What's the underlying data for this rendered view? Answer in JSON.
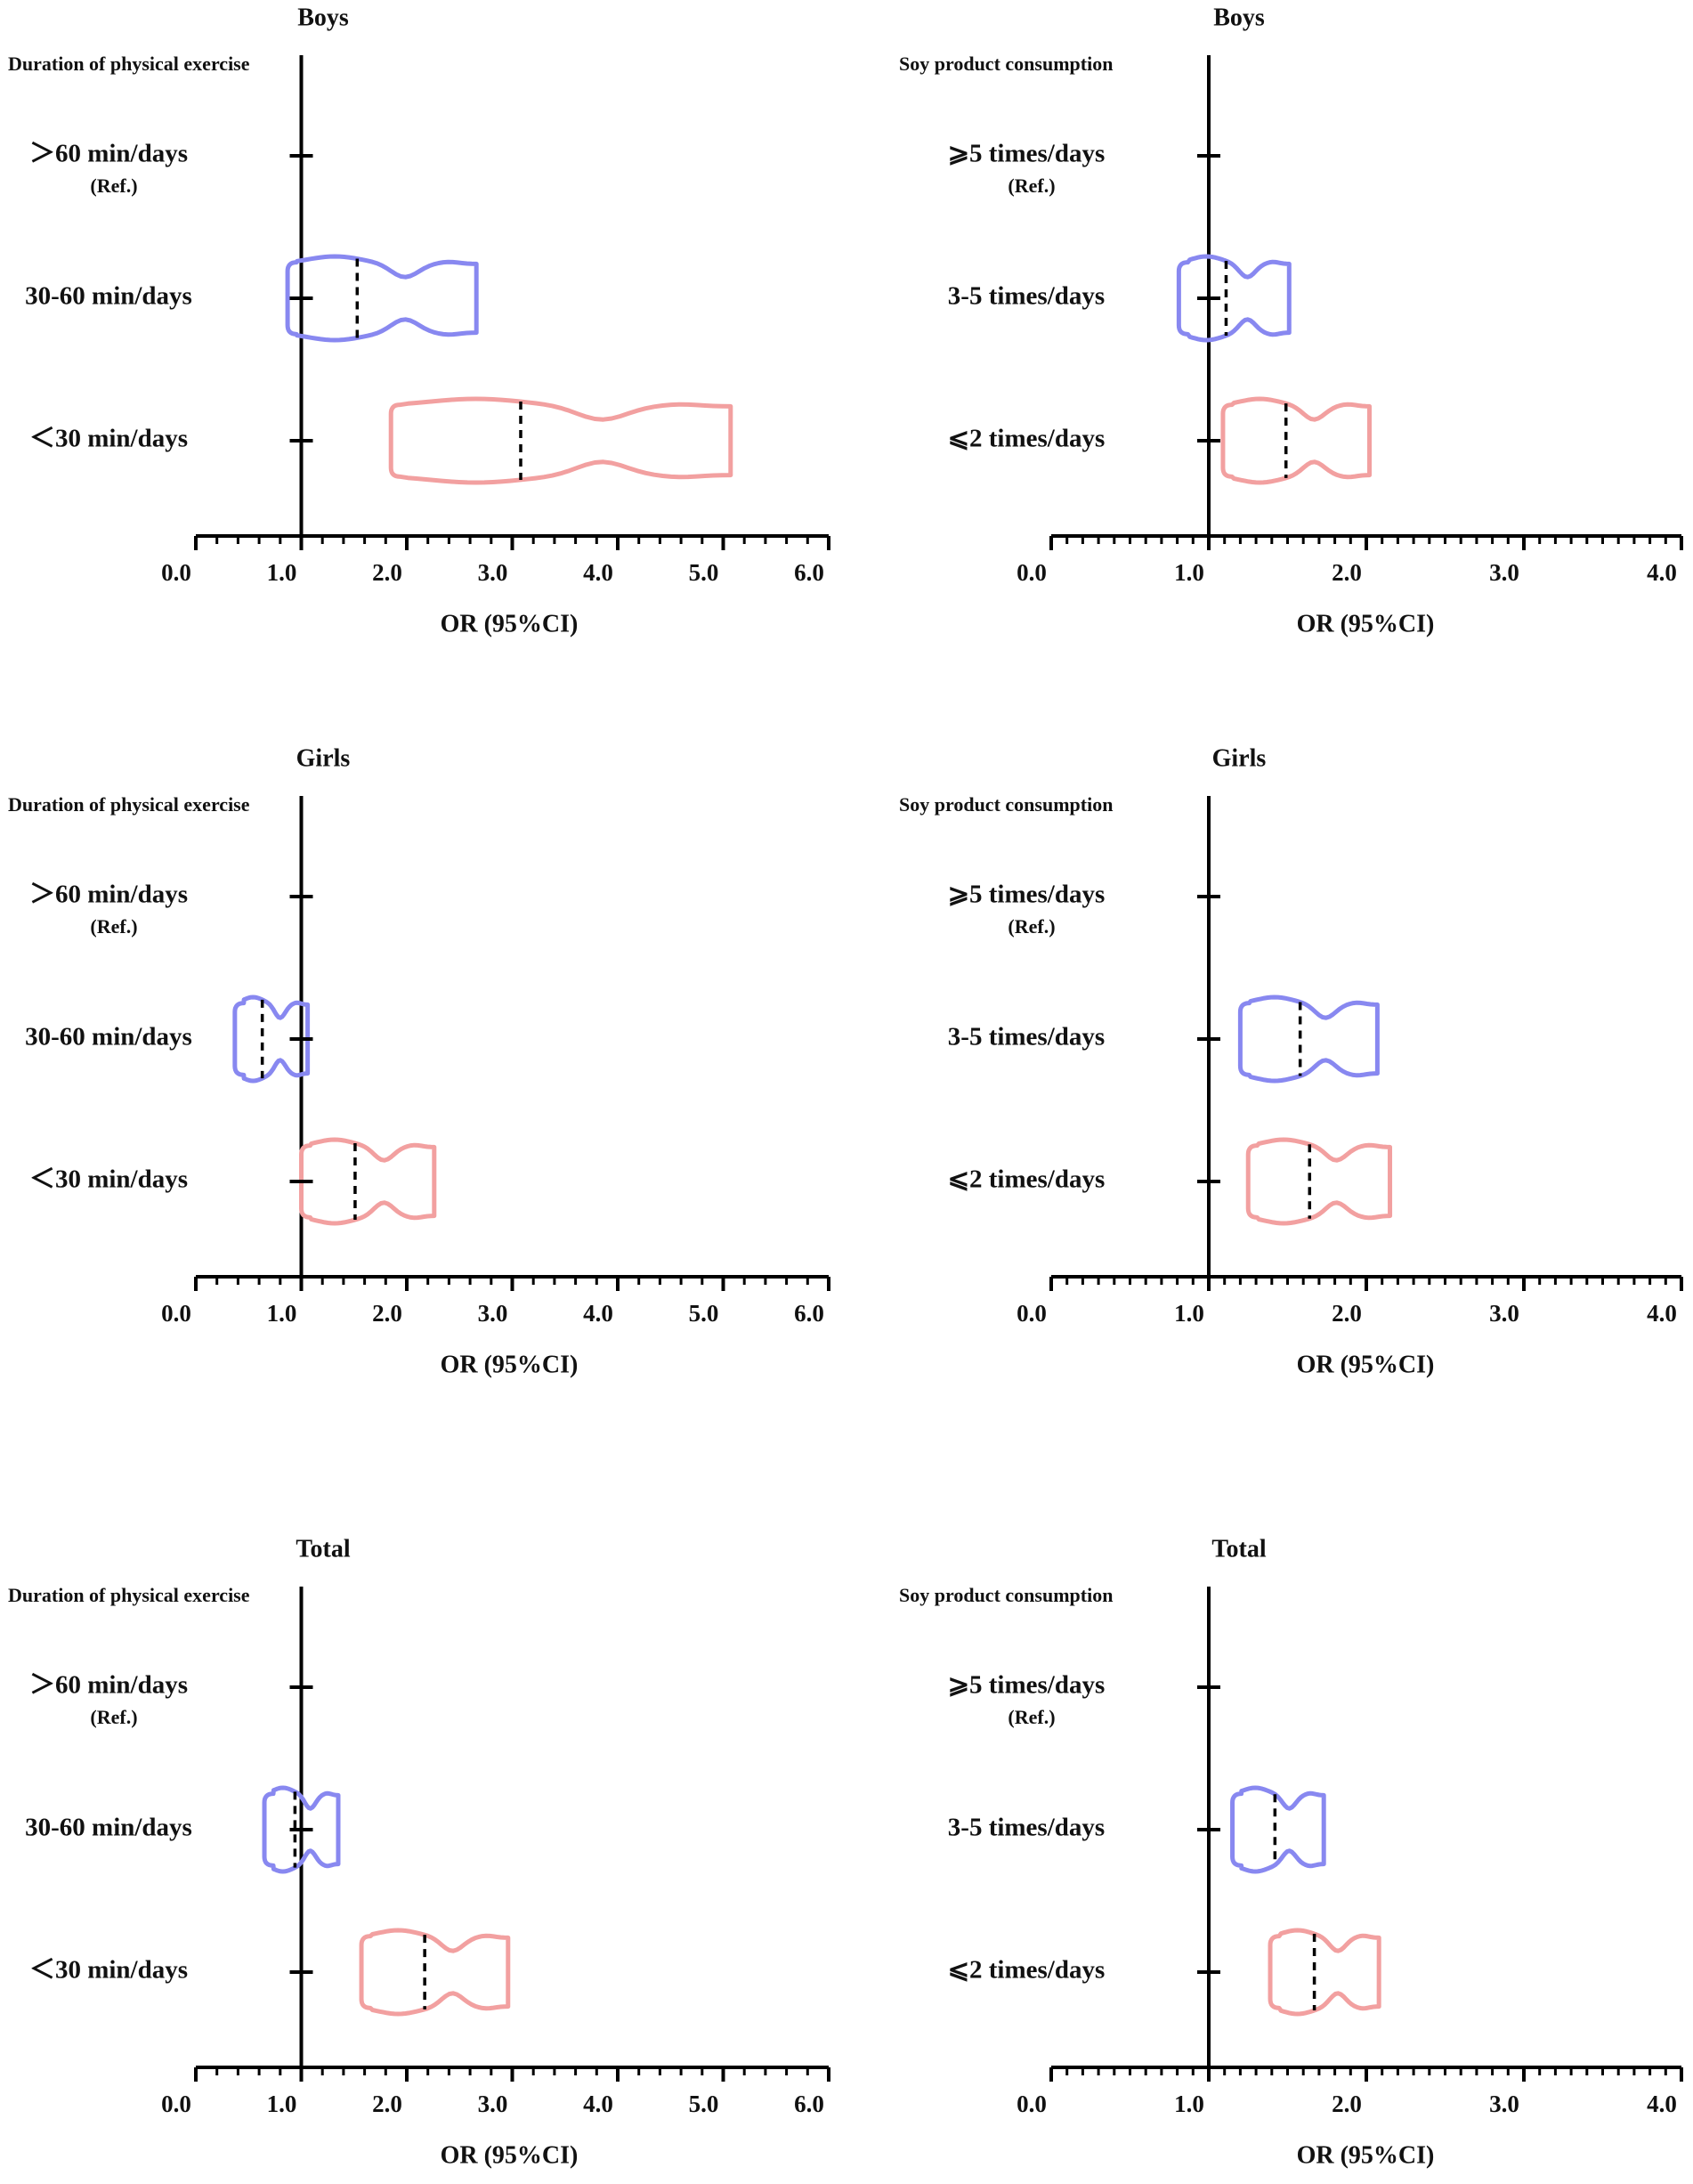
{
  "chart_data": [
    {
      "type": "violin",
      "title": "Boys",
      "subtitle": "Duration of physical exercise",
      "categories": [
        "＞60 min/days",
        "30-60 min/days",
        "＜30 min/days"
      ],
      "category_notes": [
        "(Ref.)",
        null,
        null
      ],
      "values": [
        null,
        1.53,
        3.08
      ],
      "lower": [
        null,
        0.87,
        1.85
      ],
      "upper": [
        null,
        2.66,
        5.07
      ],
      "colors": [
        null,
        "#8888f0",
        "#f2a0a0"
      ],
      "xlabel": "OR (95%CI)",
      "xlim": [
        0,
        6
      ],
      "xticks": [
        {
          "value": 0,
          "label": "0.0"
        },
        {
          "value": 1,
          "label": "1.0"
        },
        {
          "value": 2,
          "label": "2.0"
        },
        {
          "value": 3,
          "label": "3.0"
        },
        {
          "value": 4,
          "label": "4.0"
        },
        {
          "value": 5,
          "label": "5.0"
        },
        {
          "value": 6,
          "label": "6.0"
        }
      ],
      "minor_tick_step": 0.2
    },
    {
      "type": "violin",
      "title": "Boys",
      "subtitle": "Soy product consumption",
      "categories": [
        "⩾5 times/days",
        "3-5 times/days",
        "⩽2 times/days"
      ],
      "category_notes": [
        "(Ref.)",
        null,
        null
      ],
      "values": [
        null,
        1.11,
        1.49
      ],
      "lower": [
        null,
        0.81,
        1.09
      ],
      "upper": [
        null,
        1.51,
        2.02
      ],
      "colors": [
        null,
        "#8888f0",
        "#f2a0a0"
      ],
      "xlabel": "OR (95%CI)",
      "xlim": [
        0,
        4
      ],
      "xticks": [
        {
          "value": 0,
          "label": "0.0"
        },
        {
          "value": 1,
          "label": "1.0"
        },
        {
          "value": 2,
          "label": "2.0"
        },
        {
          "value": 3,
          "label": "3.0"
        },
        {
          "value": 4,
          "label": "4.0"
        }
      ],
      "minor_tick_step": 0.1
    },
    {
      "type": "violin",
      "title": "Girls",
      "subtitle": "Duration of physical exercise",
      "categories": [
        "＞60 min/days",
        "30-60 min/days",
        "＜30 min/days"
      ],
      "category_notes": [
        "(Ref.)",
        null,
        null
      ],
      "values": [
        null,
        0.63,
        1.51
      ],
      "lower": [
        null,
        0.37,
        1.0
      ],
      "upper": [
        null,
        1.06,
        2.26
      ],
      "colors": [
        null,
        "#8888f0",
        "#f2a0a0"
      ],
      "xlabel": "OR (95%CI)",
      "xlim": [
        0,
        6
      ],
      "xticks": [
        {
          "value": 0,
          "label": "0.0"
        },
        {
          "value": 1,
          "label": "1.0"
        },
        {
          "value": 2,
          "label": "2.0"
        },
        {
          "value": 3,
          "label": "3.0"
        },
        {
          "value": 4,
          "label": "4.0"
        },
        {
          "value": 5,
          "label": "5.0"
        },
        {
          "value": 6,
          "label": "6.0"
        }
      ],
      "minor_tick_step": 0.2
    },
    {
      "type": "violin",
      "title": "Girls",
      "subtitle": "Soy product consumption",
      "categories": [
        "⩾5 times/days",
        "3-5 times/days",
        "⩽2 times/days"
      ],
      "category_notes": [
        "(Ref.)",
        null,
        null
      ],
      "values": [
        null,
        1.58,
        1.64
      ],
      "lower": [
        null,
        1.2,
        1.25
      ],
      "upper": [
        null,
        2.07,
        2.15
      ],
      "colors": [
        null,
        "#8888f0",
        "#f2a0a0"
      ],
      "xlabel": "OR (95%CI)",
      "xlim": [
        0,
        4
      ],
      "xticks": [
        {
          "value": 0,
          "label": "0.0"
        },
        {
          "value": 1,
          "label": "1.0"
        },
        {
          "value": 2,
          "label": "2.0"
        },
        {
          "value": 3,
          "label": "3.0"
        },
        {
          "value": 4,
          "label": "4.0"
        }
      ],
      "minor_tick_step": 0.1
    },
    {
      "type": "violin",
      "title": "Total",
      "subtitle": "Duration of physical exercise",
      "categories": [
        "＞60 min/days",
        "30-60 min/days",
        "＜30 min/days"
      ],
      "category_notes": [
        "(Ref.)",
        null,
        null
      ],
      "values": [
        null,
        0.94,
        2.17
      ],
      "lower": [
        null,
        0.65,
        1.57
      ],
      "upper": [
        null,
        1.35,
        2.96
      ],
      "colors": [
        null,
        "#8888f0",
        "#f2a0a0"
      ],
      "xlabel": "OR (95%CI)",
      "xlim": [
        0,
        6
      ],
      "xticks": [
        {
          "value": 0,
          "label": "0.0"
        },
        {
          "value": 1,
          "label": "1.0"
        },
        {
          "value": 2,
          "label": "2.0"
        },
        {
          "value": 3,
          "label": "3.0"
        },
        {
          "value": 4,
          "label": "4.0"
        },
        {
          "value": 5,
          "label": "5.0"
        },
        {
          "value": 6,
          "label": "6.0"
        }
      ],
      "minor_tick_step": 0.2
    },
    {
      "type": "violin",
      "title": "Total",
      "subtitle": "Soy product consumption",
      "categories": [
        "⩾5 times/days",
        "3-5 times/days",
        "⩽2 times/days"
      ],
      "category_notes": [
        "(Ref.)",
        null,
        null
      ],
      "values": [
        null,
        1.42,
        1.67
      ],
      "lower": [
        null,
        1.15,
        1.39
      ],
      "upper": [
        null,
        1.73,
        2.08
      ],
      "colors": [
        null,
        "#8888f0",
        "#f2a0a0"
      ],
      "xlabel": "OR (95%CI)",
      "xlim": [
        0,
        4
      ],
      "xticks": [
        {
          "value": 0,
          "label": "0.0"
        },
        {
          "value": 1,
          "label": "1.0"
        },
        {
          "value": 2,
          "label": "2.0"
        },
        {
          "value": 3,
          "label": "3.0"
        },
        {
          "value": 4,
          "label": "4.0"
        }
      ],
      "minor_tick_step": 0.1
    }
  ]
}
